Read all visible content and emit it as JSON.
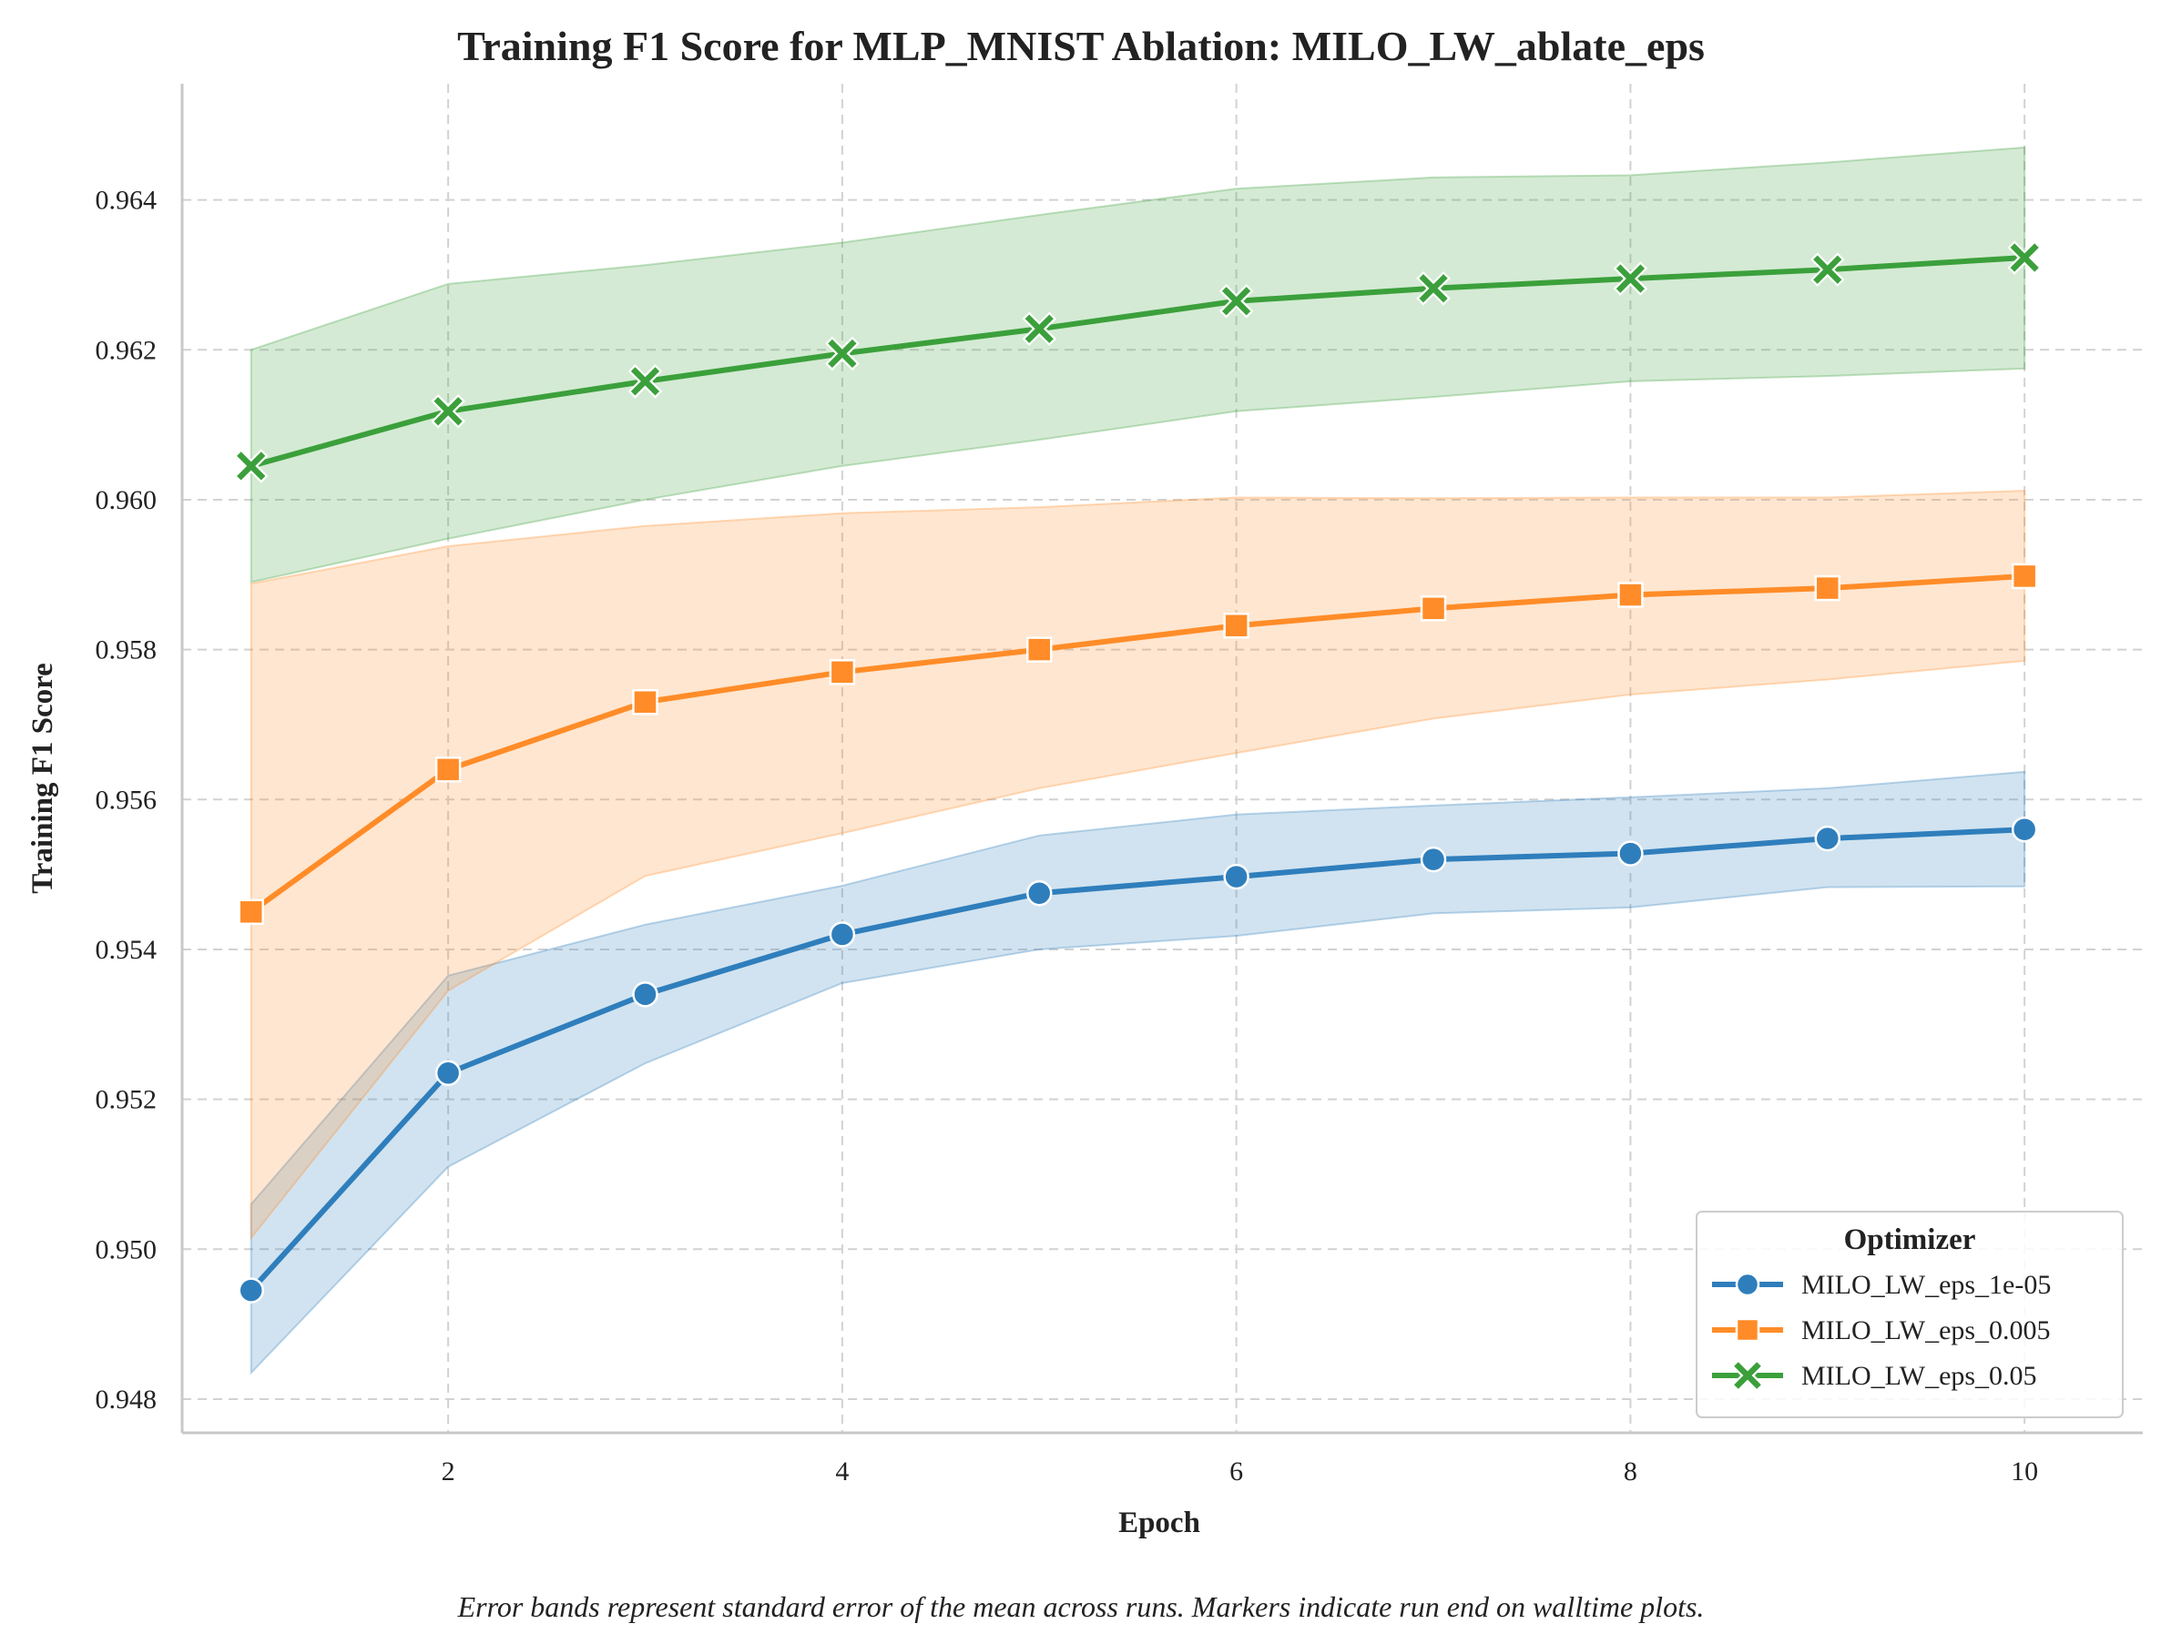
{
  "chart_data": {
    "type": "line",
    "title": "Training F1 Score for MLP_MNIST Ablation: MILO_LW_ablate_eps",
    "xlabel": "Epoch",
    "ylabel": "Training F1 Score",
    "xlim": [
      0.65,
      10.6
    ],
    "ylim": [
      0.94755,
      0.96555
    ],
    "xticks": [
      2,
      4,
      6,
      8,
      10
    ],
    "yticks": [
      0.948,
      0.95,
      0.952,
      0.954,
      0.956,
      0.958,
      0.96,
      0.962,
      0.964
    ],
    "ytick_labels": [
      "0.948",
      "0.950",
      "0.952",
      "0.954",
      "0.956",
      "0.958",
      "0.960",
      "0.962",
      "0.964"
    ],
    "grid": true,
    "legend": {
      "title": "Optimizer",
      "position": "bottom-right"
    },
    "x": [
      1,
      2,
      3,
      4,
      5,
      6,
      7,
      8,
      9,
      10
    ],
    "series": [
      {
        "name": "MILO_LW_eps_1e-05",
        "color": "#2f7ebc",
        "marker": "circle",
        "values": [
          0.94945,
          0.95235,
          0.9534,
          0.9542,
          0.95475,
          0.95497,
          0.9552,
          0.95528,
          0.95548,
          0.9556
        ],
        "lower": [
          0.94835,
          0.9511,
          0.95248,
          0.95355,
          0.954,
          0.95418,
          0.95448,
          0.95456,
          0.95483,
          0.95484
        ],
        "upper": [
          0.9506,
          0.95365,
          0.95433,
          0.95485,
          0.95552,
          0.9558,
          0.95592,
          0.95603,
          0.95615,
          0.95637
        ]
      },
      {
        "name": "MILO_LW_eps_0.005",
        "color": "#ff8c28",
        "marker": "square",
        "values": [
          0.9545,
          0.9564,
          0.9573,
          0.9577,
          0.958,
          0.95832,
          0.95855,
          0.95873,
          0.95882,
          0.95898
        ],
        "lower": [
          0.95015,
          0.95345,
          0.95498,
          0.95555,
          0.95615,
          0.95662,
          0.95708,
          0.9574,
          0.9576,
          0.95785
        ],
        "upper": [
          0.95888,
          0.95938,
          0.95965,
          0.95982,
          0.9599,
          0.96003,
          0.96002,
          0.96003,
          0.96003,
          0.96012
        ]
      },
      {
        "name": "MILO_LW_eps_0.05",
        "color": "#3ba03b",
        "marker": "x",
        "values": [
          0.96045,
          0.96118,
          0.96158,
          0.96195,
          0.96228,
          0.96265,
          0.96282,
          0.96295,
          0.96307,
          0.96323
        ],
        "lower": [
          0.9589,
          0.95948,
          0.96,
          0.96045,
          0.9608,
          0.96118,
          0.96137,
          0.96158,
          0.96165,
          0.96175
        ],
        "upper": [
          0.962,
          0.96288,
          0.96313,
          0.96343,
          0.9638,
          0.96415,
          0.9643,
          0.96433,
          0.9645,
          0.9647
        ]
      }
    ],
    "caption": "Error bands represent standard error of the mean across runs. Markers indicate run end on walltime plots."
  }
}
